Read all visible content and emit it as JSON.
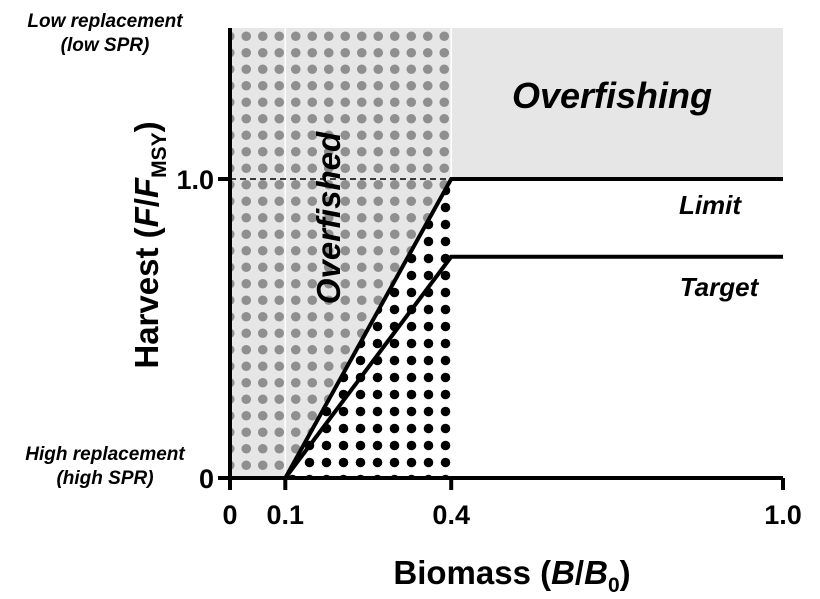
{
  "chart_data": {
    "type": "line",
    "title": "",
    "xlabel": {
      "prefix": "Biomass (",
      "var": "B",
      "sep": "/",
      "var2": "B",
      "sub": "0",
      "suffix": ")"
    },
    "ylabel": {
      "prefix": "Harvest (",
      "var": "F",
      "sep": "/",
      "var2": "F",
      "sub": "MSY",
      "suffix": ")"
    },
    "xlim": [
      0,
      1.0
    ],
    "ylim": [
      0,
      1.0
    ],
    "y_top": 1.5,
    "x_ticks": [
      {
        "value": 0,
        "label": "0"
      },
      {
        "value": 0.1,
        "label": "0.1"
      },
      {
        "value": 0.4,
        "label": "0.4"
      },
      {
        "value": 1.0,
        "label": "1.0"
      }
    ],
    "y_ticks": [
      {
        "value": 0,
        "label": "0"
      },
      {
        "value": 1.0,
        "label": "1.0"
      }
    ],
    "series": [
      {
        "name": "Limit",
        "x": [
          0.1,
          0.4,
          1.0
        ],
        "y": [
          0,
          1.0,
          1.0
        ]
      },
      {
        "name": "Target",
        "x": [
          0.1,
          0.4,
          1.0
        ],
        "y": [
          0,
          0.74,
          0.74
        ]
      }
    ],
    "regions": {
      "overfished": {
        "label": "Overfished",
        "x": [
          0,
          0.4
        ]
      },
      "overfishing": {
        "label": "Overfishing",
        "y_min": 1.0
      }
    },
    "annotations": {
      "top_left": [
        "Low replacement",
        "(low SPR)"
      ],
      "bottom_left": [
        "High replacement",
        "(high SPR)"
      ]
    },
    "colors": {
      "shade": "#e6e6e6",
      "grey_dot": "#8f8f8f",
      "black_dot": "#000000",
      "line": "#000000"
    }
  }
}
